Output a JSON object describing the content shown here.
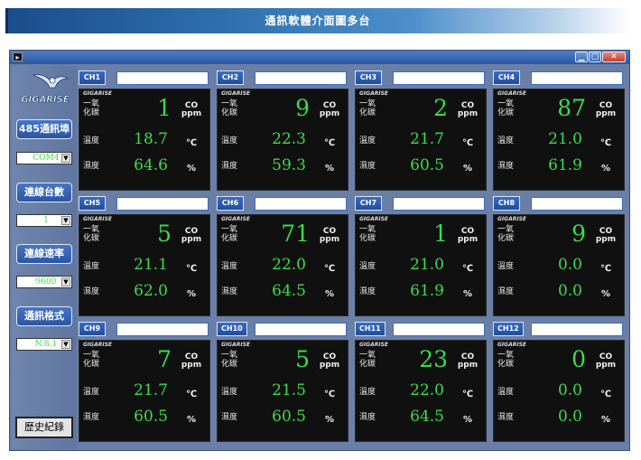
{
  "banner_title": "通訊軟體介面圖多台",
  "window": {
    "app_icon": "▸",
    "min_icon": "minimize-icon",
    "max_icon": "maximize-icon",
    "close_icon": "close-icon",
    "min_glyph": "▁",
    "max_glyph": "▢",
    "close_glyph": "✕"
  },
  "sidebar": {
    "logo_text": "GIGARISE",
    "btn_port": "485通訊埠",
    "port_value": "COM4",
    "btn_count": "連線台數",
    "count_value": "1",
    "btn_rate": "連線速率",
    "rate_value": "9600",
    "btn_format": "通訊格式",
    "format_value": "N.8.1",
    "history": "歷史紀錄"
  },
  "labels": {
    "mini": "GIGARISE",
    "co_line1": "一氧",
    "co_line2": "化碳",
    "temp": "溫度",
    "hum": "濕度",
    "co_unit1": "CO",
    "co_unit2": "ppm",
    "temp_unit": "℃",
    "hum_unit": "%"
  },
  "channels": [
    {
      "label": "CH1",
      "co": "1",
      "temp": "18.7",
      "hum": "64.6"
    },
    {
      "label": "CH2",
      "co": "9",
      "temp": "22.3",
      "hum": "59.3"
    },
    {
      "label": "CH3",
      "co": "2",
      "temp": "21.7",
      "hum": "60.5"
    },
    {
      "label": "CH4",
      "co": "87",
      "temp": "21.0",
      "hum": "61.9"
    },
    {
      "label": "CH5",
      "co": "5",
      "temp": "21.1",
      "hum": "62.0"
    },
    {
      "label": "CH6",
      "co": "71",
      "temp": "22.0",
      "hum": "64.5"
    },
    {
      "label": "CH7",
      "co": "1",
      "temp": "21.0",
      "hum": "61.9"
    },
    {
      "label": "CH8",
      "co": "9",
      "temp": "0.0",
      "hum": "0.0"
    },
    {
      "label": "CH9",
      "co": "7",
      "temp": "21.7",
      "hum": "60.5"
    },
    {
      "label": "CH10",
      "co": "5",
      "temp": "21.5",
      "hum": "60.5"
    },
    {
      "label": "CH11",
      "co": "23",
      "temp": "22.0",
      "hum": "64.5"
    },
    {
      "label": "CH12",
      "co": "0",
      "temp": "0.0",
      "hum": "0.0"
    }
  ],
  "colors": {
    "value_green": "#3ddc4a",
    "display_bg": "#101010",
    "accent_blue": "#2a55a3"
  }
}
